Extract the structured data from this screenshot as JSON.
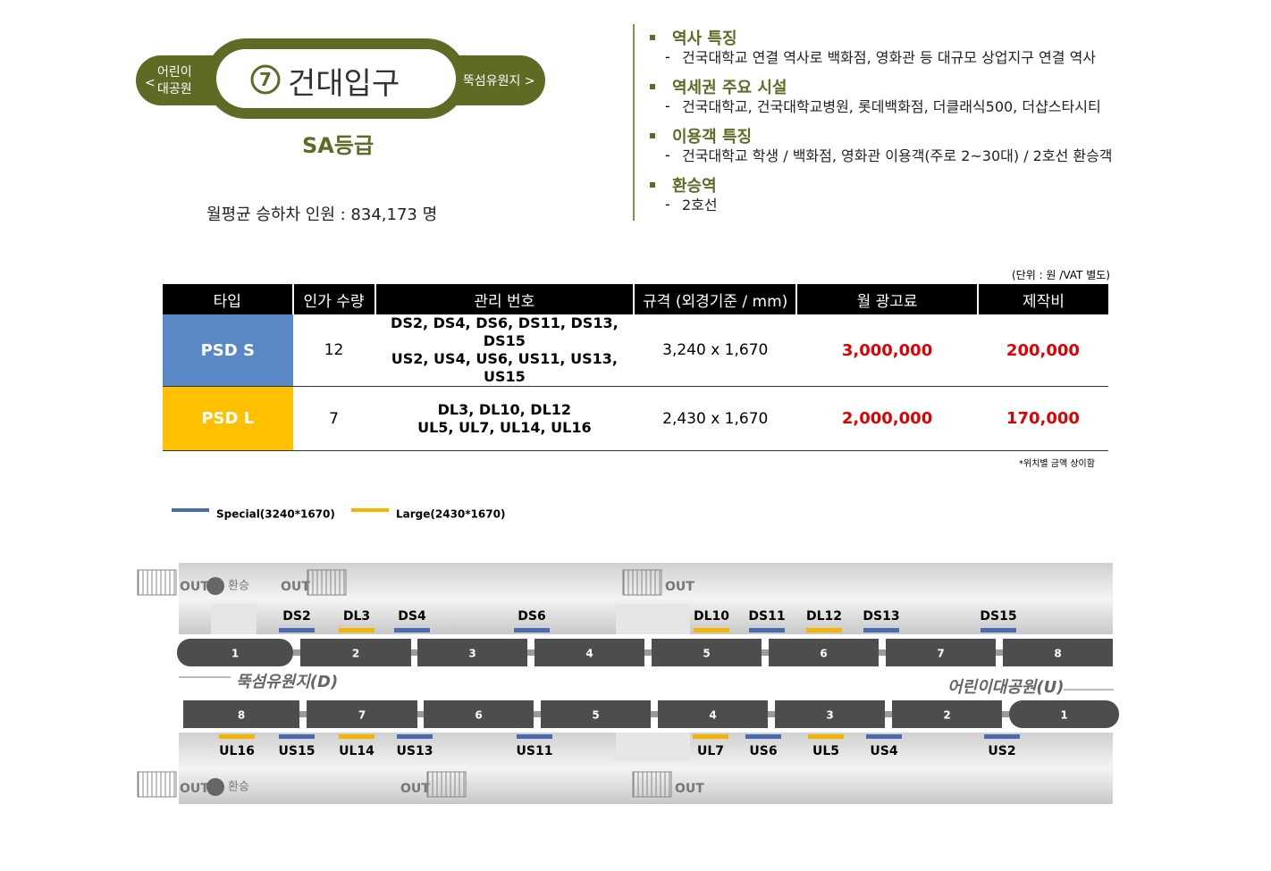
{
  "station": {
    "prev_arrow": "<",
    "prev": [
      "어린이",
      "대공원"
    ],
    "number": "7",
    "name": "건대입구",
    "next": "뚝섬유원지 >",
    "grade": "SA등급",
    "ridership": "월평균 승하차 인원 : 834,173 명"
  },
  "info": [
    {
      "heading": "역사 특징",
      "detail": "건국대학교 연결 역사로 백화점, 영화관 등 대규모 상업지구 연결 역사"
    },
    {
      "heading": "역세권 주요 시설",
      "detail": "건국대학교, 건국대학교병원, 롯데백화점, 더클래식500, 더샵스타시티"
    },
    {
      "heading": "이용객 특징",
      "detail": "건국대학교 학생 / 백화점, 영화관 이용객(주로 2~30대) / 2호선 환승객"
    },
    {
      "heading": "환승역",
      "detail": "2호선"
    }
  ],
  "table": {
    "unit": "(단위 : 원 /VAT 별도)",
    "headers": [
      "타입",
      "인가 수량",
      "관리 번호",
      "규격 (외경기준 / mm)",
      "월 광고료",
      "제작비"
    ],
    "rows": [
      {
        "type": "PSD S",
        "count": "12",
        "codes": [
          "DS2, DS4, DS6, DS11, DS13, DS15",
          "US2, US4, US6, US11, US13, US15"
        ],
        "size": "3,240 x 1,670",
        "fee": "3,000,000",
        "production": "200,000",
        "color": "#5a87c5"
      },
      {
        "type": "PSD L",
        "count": "7",
        "codes": [
          "DL3, DL10, DL12",
          "UL5, UL7, UL14, UL16"
        ],
        "size": "2,430 x 1,670",
        "fee": "2,000,000",
        "production": "170,000",
        "color": "#ffc000"
      }
    ],
    "note": "*위치별 금액 상이함"
  },
  "legend": [
    {
      "name": "Special(3240*1670)",
      "color": "#4a6bb0"
    },
    {
      "name": "Large(2430*1670)",
      "color": "#f5b400"
    }
  ],
  "diagram": {
    "out": "OUT",
    "transfer": "환승",
    "down_direction": "뚝섬유원지(D)",
    "up_direction": "어린이대공원(U)",
    "upper_cars": [
      "1",
      "2",
      "3",
      "4",
      "5",
      "6",
      "7",
      "8"
    ],
    "lower_cars": [
      "8",
      "7",
      "6",
      "5",
      "4",
      "3",
      "2",
      "1"
    ],
    "upper_doors": [
      "DS2",
      "DL3",
      "DS4",
      "DS6",
      "DL10",
      "DS11",
      "DL12",
      "DS13",
      "DS15"
    ],
    "lower_doors": [
      "UL16",
      "US15",
      "UL14",
      "US13",
      "US11",
      "UL7",
      "US6",
      "UL5",
      "US4",
      "US2"
    ]
  }
}
